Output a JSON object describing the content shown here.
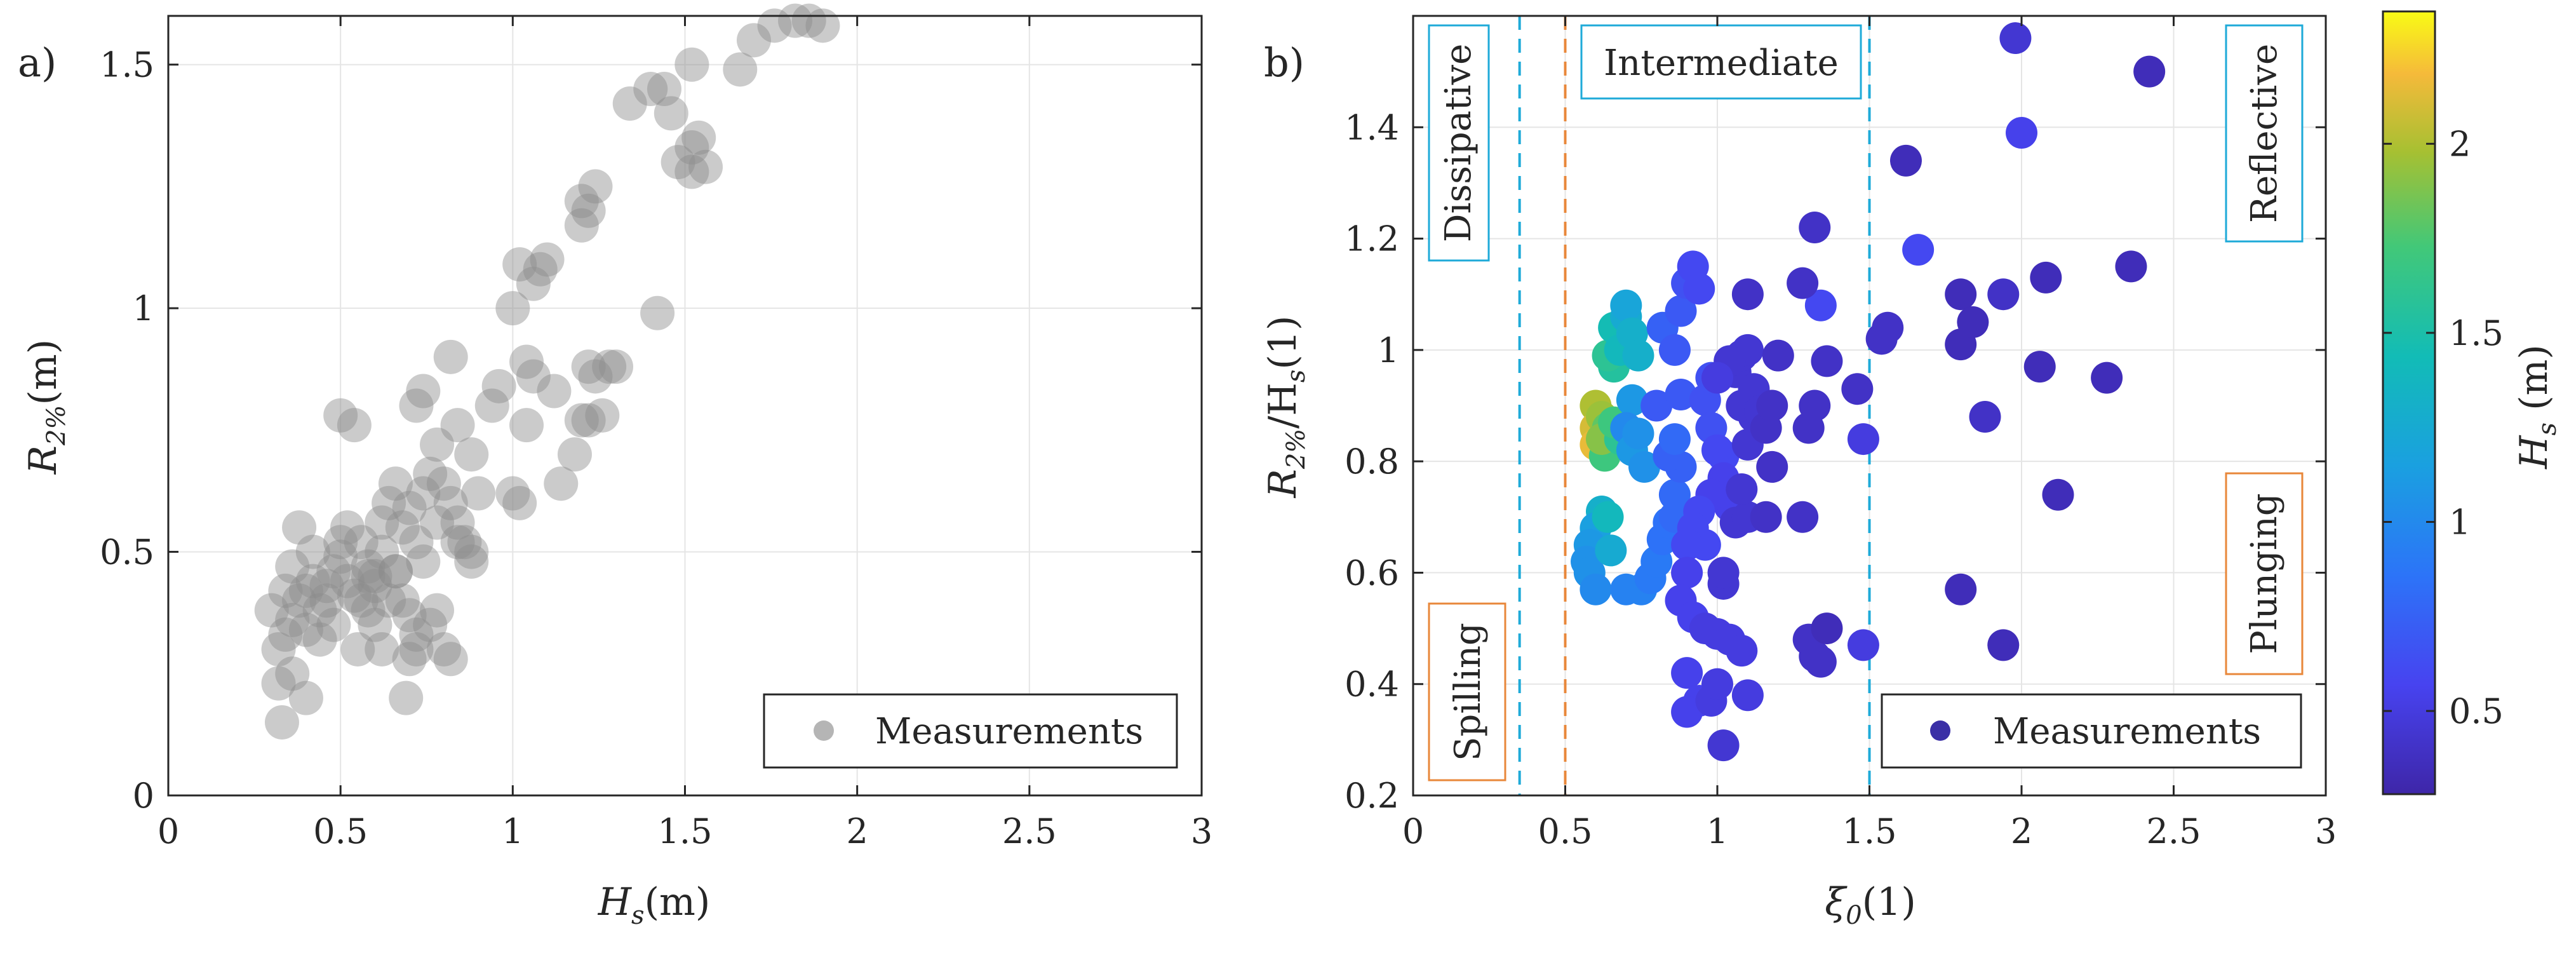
{
  "colors": {
    "gray_marker": "#8c8c8c",
    "cyan_line": "#1eaad8",
    "orange_line": "#e8873a",
    "grid": "#e5e5e5",
    "axis": "#262626"
  },
  "chart_data": [
    {
      "panel_label": "a)",
      "type": "scatter",
      "xlabel": {
        "main": "H",
        "sub": "s",
        "rest": "(m)"
      },
      "ylabel": {
        "main": "R",
        "sub": "2%",
        "rest": "(m)"
      },
      "xlim": [
        0,
        3
      ],
      "ylim": [
        0,
        1.6
      ],
      "xticks": [
        0,
        0.5,
        1,
        1.5,
        2,
        2.5,
        3
      ],
      "xtick_labels": [
        "0",
        "0.5",
        "1",
        "1.5",
        "2",
        "2.5",
        "3"
      ],
      "yticks": [
        0,
        0.5,
        1,
        1.5
      ],
      "ytick_labels": [
        "0",
        "0.5",
        "1",
        "1.5"
      ],
      "grid": true,
      "legend": {
        "label": "Measurements",
        "location": "bottom-right"
      },
      "marker_color": "#8c8c8c",
      "marker_alpha": 0.45,
      "points": [
        [
          0.33,
          0.15
        ],
        [
          0.32,
          0.23
        ],
        [
          0.36,
          0.25
        ],
        [
          0.4,
          0.2
        ],
        [
          0.32,
          0.3
        ],
        [
          0.34,
          0.33
        ],
        [
          0.36,
          0.36
        ],
        [
          0.38,
          0.4
        ],
        [
          0.4,
          0.42
        ],
        [
          0.42,
          0.44
        ],
        [
          0.44,
          0.38
        ],
        [
          0.46,
          0.43
        ],
        [
          0.48,
          0.46
        ],
        [
          0.5,
          0.49
        ],
        [
          0.52,
          0.44
        ],
        [
          0.54,
          0.41
        ],
        [
          0.56,
          0.4
        ],
        [
          0.58,
          0.45
        ],
        [
          0.5,
          0.52
        ],
        [
          0.52,
          0.55
        ],
        [
          0.56,
          0.52
        ],
        [
          0.58,
          0.47
        ],
        [
          0.6,
          0.43
        ],
        [
          0.62,
          0.5
        ],
        [
          0.36,
          0.47
        ],
        [
          0.38,
          0.55
        ],
        [
          0.42,
          0.5
        ],
        [
          0.46,
          0.4
        ],
        [
          0.48,
          0.35
        ],
        [
          0.44,
          0.32
        ],
        [
          0.4,
          0.34
        ],
        [
          0.34,
          0.42
        ],
        [
          0.3,
          0.38
        ],
        [
          0.5,
          0.78
        ],
        [
          0.54,
          0.76
        ],
        [
          0.62,
          0.56
        ],
        [
          0.64,
          0.6
        ],
        [
          0.66,
          0.64
        ],
        [
          0.68,
          0.55
        ],
        [
          0.7,
          0.59
        ],
        [
          0.72,
          0.52
        ],
        [
          0.74,
          0.48
        ],
        [
          0.66,
          0.46
        ],
        [
          0.68,
          0.4
        ],
        [
          0.7,
          0.37
        ],
        [
          0.72,
          0.33
        ],
        [
          0.76,
          0.35
        ],
        [
          0.78,
          0.38
        ],
        [
          0.8,
          0.3
        ],
        [
          0.82,
          0.28
        ],
        [
          0.7,
          0.28
        ],
        [
          0.72,
          0.3
        ],
        [
          0.69,
          0.2
        ],
        [
          0.72,
          0.8
        ],
        [
          0.74,
          0.83
        ],
        [
          0.78,
          0.72
        ],
        [
          0.8,
          0.64
        ],
        [
          0.82,
          0.6
        ],
        [
          0.84,
          0.56
        ],
        [
          0.86,
          0.52
        ],
        [
          0.88,
          0.48
        ],
        [
          0.78,
          0.56
        ],
        [
          0.74,
          0.62
        ],
        [
          0.76,
          0.66
        ],
        [
          0.84,
          0.76
        ],
        [
          0.88,
          0.7
        ],
        [
          0.9,
          0.62
        ],
        [
          0.82,
          0.9
        ],
        [
          0.94,
          0.8
        ],
        [
          0.96,
          0.84
        ],
        [
          1.0,
          0.62
        ],
        [
          1.02,
          0.6
        ],
        [
          1.04,
          0.76
        ],
        [
          1.06,
          0.86
        ],
        [
          1.04,
          0.89
        ],
        [
          1.0,
          1.0
        ],
        [
          1.02,
          1.09
        ],
        [
          1.06,
          1.05
        ],
        [
          1.08,
          1.08
        ],
        [
          1.1,
          1.1
        ],
        [
          1.12,
          0.83
        ],
        [
          1.14,
          0.64
        ],
        [
          1.18,
          0.7
        ],
        [
          1.2,
          0.77
        ],
        [
          1.22,
          0.77
        ],
        [
          1.24,
          0.86
        ],
        [
          1.26,
          0.78
        ],
        [
          1.28,
          0.88
        ],
        [
          1.2,
          1.17
        ],
        [
          1.22,
          1.2
        ],
        [
          1.2,
          1.22
        ],
        [
          1.24,
          1.25
        ],
        [
          1.22,
          0.88
        ],
        [
          1.3,
          0.88
        ],
        [
          1.34,
          1.42
        ],
        [
          1.4,
          1.45
        ],
        [
          1.44,
          1.45
        ],
        [
          1.42,
          0.99
        ],
        [
          1.46,
          1.4
        ],
        [
          1.48,
          1.3
        ],
        [
          1.52,
          1.33
        ],
        [
          1.54,
          1.35
        ],
        [
          1.52,
          1.28
        ],
        [
          1.56,
          1.29
        ],
        [
          1.52,
          1.5
        ],
        [
          1.66,
          1.49
        ],
        [
          1.7,
          1.55
        ],
        [
          1.76,
          1.58
        ],
        [
          1.82,
          1.59
        ],
        [
          1.86,
          1.59
        ],
        [
          1.9,
          1.58
        ],
        [
          0.88,
          0.5
        ],
        [
          0.84,
          0.52
        ],
        [
          0.6,
          0.45
        ],
        [
          0.64,
          0.4
        ],
        [
          0.66,
          0.46
        ],
        [
          0.58,
          0.38
        ],
        [
          0.55,
          0.3
        ],
        [
          0.62,
          0.3
        ],
        [
          0.6,
          0.35
        ]
      ]
    },
    {
      "panel_label": "b)",
      "type": "scatter",
      "xlabel": {
        "main": "ξ",
        "sub": "0",
        "rest": "(1)"
      },
      "ylabel": {
        "main": "R",
        "sub": "2%",
        "mid": "/H",
        "sub2": "s",
        "rest": "(1)"
      },
      "xlim": [
        0,
        3
      ],
      "ylim": [
        0.2,
        1.6
      ],
      "xticks": [
        0,
        0.5,
        1,
        1.5,
        2,
        2.5,
        3
      ],
      "xtick_labels": [
        "0",
        "0.5",
        "1",
        "1.5",
        "2",
        "2.5",
        "3"
      ],
      "yticks": [
        0.2,
        0.4,
        0.6,
        0.8,
        1.0,
        1.2,
        1.4
      ],
      "ytick_labels": [
        "0.2",
        "0.4",
        "0.6",
        "0.8",
        "1",
        "1.2",
        "1.4"
      ],
      "grid": true,
      "legend": {
        "label": "Measurements",
        "location": "bottom-right"
      },
      "colorbar": {
        "label": {
          "main": "H",
          "sub": "s",
          "rest": "  (m)"
        },
        "range": [
          0.28,
          2.35
        ],
        "ticks": [
          0.5,
          1,
          1.5,
          2
        ],
        "tick_labels": [
          "0.5",
          "1",
          "1.5",
          "2"
        ],
        "colormap": "parula"
      },
      "reference_lines": [
        {
          "x": 0.35,
          "color": "#1eaad8",
          "style": "dashed"
        },
        {
          "x": 0.5,
          "color": "#e8873a",
          "style": "dashed"
        },
        {
          "x": 1.5,
          "color": "#1eaad8",
          "style": "dashed"
        }
      ],
      "region_labels": [
        {
          "text": "Dissipative",
          "orientation": "vertical",
          "color": "#1eaad8",
          "position": "top-left"
        },
        {
          "text": "Intermediate",
          "orientation": "horizontal",
          "color": "#1eaad8",
          "position": "top-center"
        },
        {
          "text": "Reflective",
          "orientation": "vertical",
          "color": "#1eaad8",
          "position": "top-right"
        },
        {
          "text": "Spilling",
          "orientation": "vertical",
          "color": "#e8873a",
          "position": "bottom-left"
        },
        {
          "text": "Plunging",
          "orientation": "vertical",
          "color": "#e8873a",
          "position": "right-middle"
        }
      ],
      "points": [
        [
          0.6,
          0.9,
          2.0
        ],
        [
          0.6,
          0.86,
          2.1
        ],
        [
          0.6,
          0.83,
          2.15
        ],
        [
          0.62,
          0.88,
          1.95
        ],
        [
          0.64,
          0.86,
          1.8
        ],
        [
          0.63,
          0.81,
          1.7
        ],
        [
          0.62,
          0.84,
          1.9
        ],
        [
          0.62,
          0.71,
          1.3
        ],
        [
          0.6,
          0.68,
          1.15
        ],
        [
          0.58,
          0.65,
          1.1
        ],
        [
          0.57,
          0.62,
          1.05
        ],
        [
          0.58,
          0.6,
          1.05
        ],
        [
          0.6,
          0.57,
          1.0
        ],
        [
          0.65,
          0.64,
          1.25
        ],
        [
          0.64,
          0.7,
          1.4
        ],
        [
          0.68,
          0.84,
          1.6
        ],
        [
          0.66,
          0.87,
          1.7
        ],
        [
          0.66,
          0.97,
          1.55
        ],
        [
          0.64,
          0.99,
          1.6
        ],
        [
          0.66,
          1.04,
          1.45
        ],
        [
          0.68,
          1.0,
          1.4
        ],
        [
          0.7,
          1.06,
          1.25
        ],
        [
          0.7,
          1.08,
          1.2
        ],
        [
          0.72,
          1.03,
          1.3
        ],
        [
          0.74,
          0.99,
          1.3
        ],
        [
          0.72,
          0.91,
          1.1
        ],
        [
          0.7,
          0.86,
          1.0
        ],
        [
          0.72,
          0.82,
          1.1
        ],
        [
          0.74,
          0.85,
          1.05
        ],
        [
          0.76,
          0.79,
          1.05
        ],
        [
          0.7,
          0.57,
          0.95
        ],
        [
          0.75,
          0.57,
          0.95
        ],
        [
          0.78,
          0.59,
          0.9
        ],
        [
          0.8,
          0.62,
          0.9
        ],
        [
          0.82,
          0.66,
          0.85
        ],
        [
          0.84,
          0.69,
          0.85
        ],
        [
          0.86,
          0.7,
          0.8
        ],
        [
          0.86,
          0.74,
          0.8
        ],
        [
          0.88,
          0.79,
          0.75
        ],
        [
          0.84,
          0.81,
          0.75
        ],
        [
          0.86,
          0.84,
          0.8
        ],
        [
          0.8,
          0.9,
          0.7
        ],
        [
          0.82,
          1.04,
          0.75
        ],
        [
          0.86,
          1.0,
          0.7
        ],
        [
          0.88,
          0.92,
          0.7
        ],
        [
          0.88,
          1.07,
          0.7
        ],
        [
          0.9,
          1.12,
          0.65
        ],
        [
          0.92,
          1.15,
          0.6
        ],
        [
          0.94,
          1.11,
          0.6
        ],
        [
          0.96,
          0.91,
          0.65
        ],
        [
          0.98,
          0.95,
          0.65
        ],
        [
          0.98,
          0.86,
          0.65
        ],
        [
          1.0,
          0.82,
          0.6
        ],
        [
          1.02,
          0.81,
          0.6
        ],
        [
          1.02,
          0.77,
          0.55
        ],
        [
          1.04,
          0.72,
          0.55
        ],
        [
          0.98,
          0.74,
          0.55
        ],
        [
          0.94,
          0.71,
          0.6
        ],
        [
          0.92,
          0.68,
          0.6
        ],
        [
          0.96,
          0.65,
          0.6
        ],
        [
          0.9,
          0.65,
          0.6
        ],
        [
          0.9,
          0.6,
          0.55
        ],
        [
          0.88,
          0.55,
          0.55
        ],
        [
          0.92,
          0.52,
          0.55
        ],
        [
          0.96,
          0.5,
          0.5
        ],
        [
          1.0,
          0.49,
          0.5
        ],
        [
          1.04,
          0.48,
          0.5
        ],
        [
          1.08,
          0.46,
          0.5
        ],
        [
          0.9,
          0.42,
          0.55
        ],
        [
          0.94,
          0.37,
          0.55
        ],
        [
          0.9,
          0.35,
          0.55
        ],
        [
          0.98,
          0.37,
          0.5
        ],
        [
          1.0,
          0.4,
          0.5
        ],
        [
          1.1,
          0.38,
          0.5
        ],
        [
          1.02,
          0.29,
          0.45
        ],
        [
          1.02,
          0.58,
          0.45
        ],
        [
          1.02,
          0.6,
          0.45
        ],
        [
          1.06,
          0.69,
          0.45
        ],
        [
          1.1,
          0.7,
          0.45
        ],
        [
          1.08,
          0.75,
          0.45
        ],
        [
          1.1,
          0.83,
          0.45
        ],
        [
          1.12,
          0.88,
          0.45
        ],
        [
          1.08,
          0.9,
          0.45
        ],
        [
          1.06,
          0.96,
          0.45
        ],
        [
          1.08,
          0.99,
          0.45
        ],
        [
          1.1,
          1.0,
          0.45
        ],
        [
          1.12,
          0.93,
          0.45
        ],
        [
          1.14,
          0.89,
          0.45
        ],
        [
          1.16,
          0.86,
          0.4
        ],
        [
          1.18,
          0.9,
          0.4
        ],
        [
          1.2,
          0.99,
          0.4
        ],
        [
          1.18,
          0.79,
          0.4
        ],
        [
          1.16,
          0.7,
          0.4
        ],
        [
          1.1,
          1.1,
          0.4
        ],
        [
          1.04,
          0.98,
          0.45
        ],
        [
          1.0,
          0.95,
          0.5
        ],
        [
          1.28,
          0.7,
          0.4
        ],
        [
          1.3,
          0.86,
          0.4
        ],
        [
          1.32,
          0.9,
          0.4
        ],
        [
          1.36,
          0.98,
          0.4
        ],
        [
          1.34,
          1.08,
          0.6
        ],
        [
          1.32,
          1.22,
          0.4
        ],
        [
          1.28,
          1.12,
          0.4
        ],
        [
          1.3,
          0.48,
          0.4
        ],
        [
          1.32,
          0.45,
          0.4
        ],
        [
          1.34,
          0.44,
          0.4
        ],
        [
          1.36,
          0.5,
          0.35
        ],
        [
          1.46,
          0.93,
          0.4
        ],
        [
          1.48,
          0.84,
          0.5
        ],
        [
          1.48,
          0.47,
          0.5
        ],
        [
          1.54,
          1.02,
          0.4
        ],
        [
          1.56,
          1.04,
          0.4
        ],
        [
          1.62,
          1.34,
          0.35
        ],
        [
          1.66,
          1.18,
          0.6
        ],
        [
          1.8,
          1.1,
          0.35
        ],
        [
          1.8,
          1.01,
          0.35
        ],
        [
          1.84,
          1.05,
          0.35
        ],
        [
          1.88,
          0.88,
          0.4
        ],
        [
          1.8,
          0.57,
          0.35
        ],
        [
          1.94,
          0.47,
          0.35
        ],
        [
          1.94,
          1.1,
          0.4
        ],
        [
          1.98,
          1.56,
          0.45
        ],
        [
          2.0,
          1.39,
          0.55
        ],
        [
          2.06,
          0.97,
          0.35
        ],
        [
          2.08,
          1.13,
          0.35
        ],
        [
          2.12,
          0.74,
          0.35
        ],
        [
          2.28,
          0.95,
          0.35
        ],
        [
          2.36,
          1.15,
          0.35
        ],
        [
          2.42,
          1.5,
          0.35
        ]
      ]
    }
  ]
}
